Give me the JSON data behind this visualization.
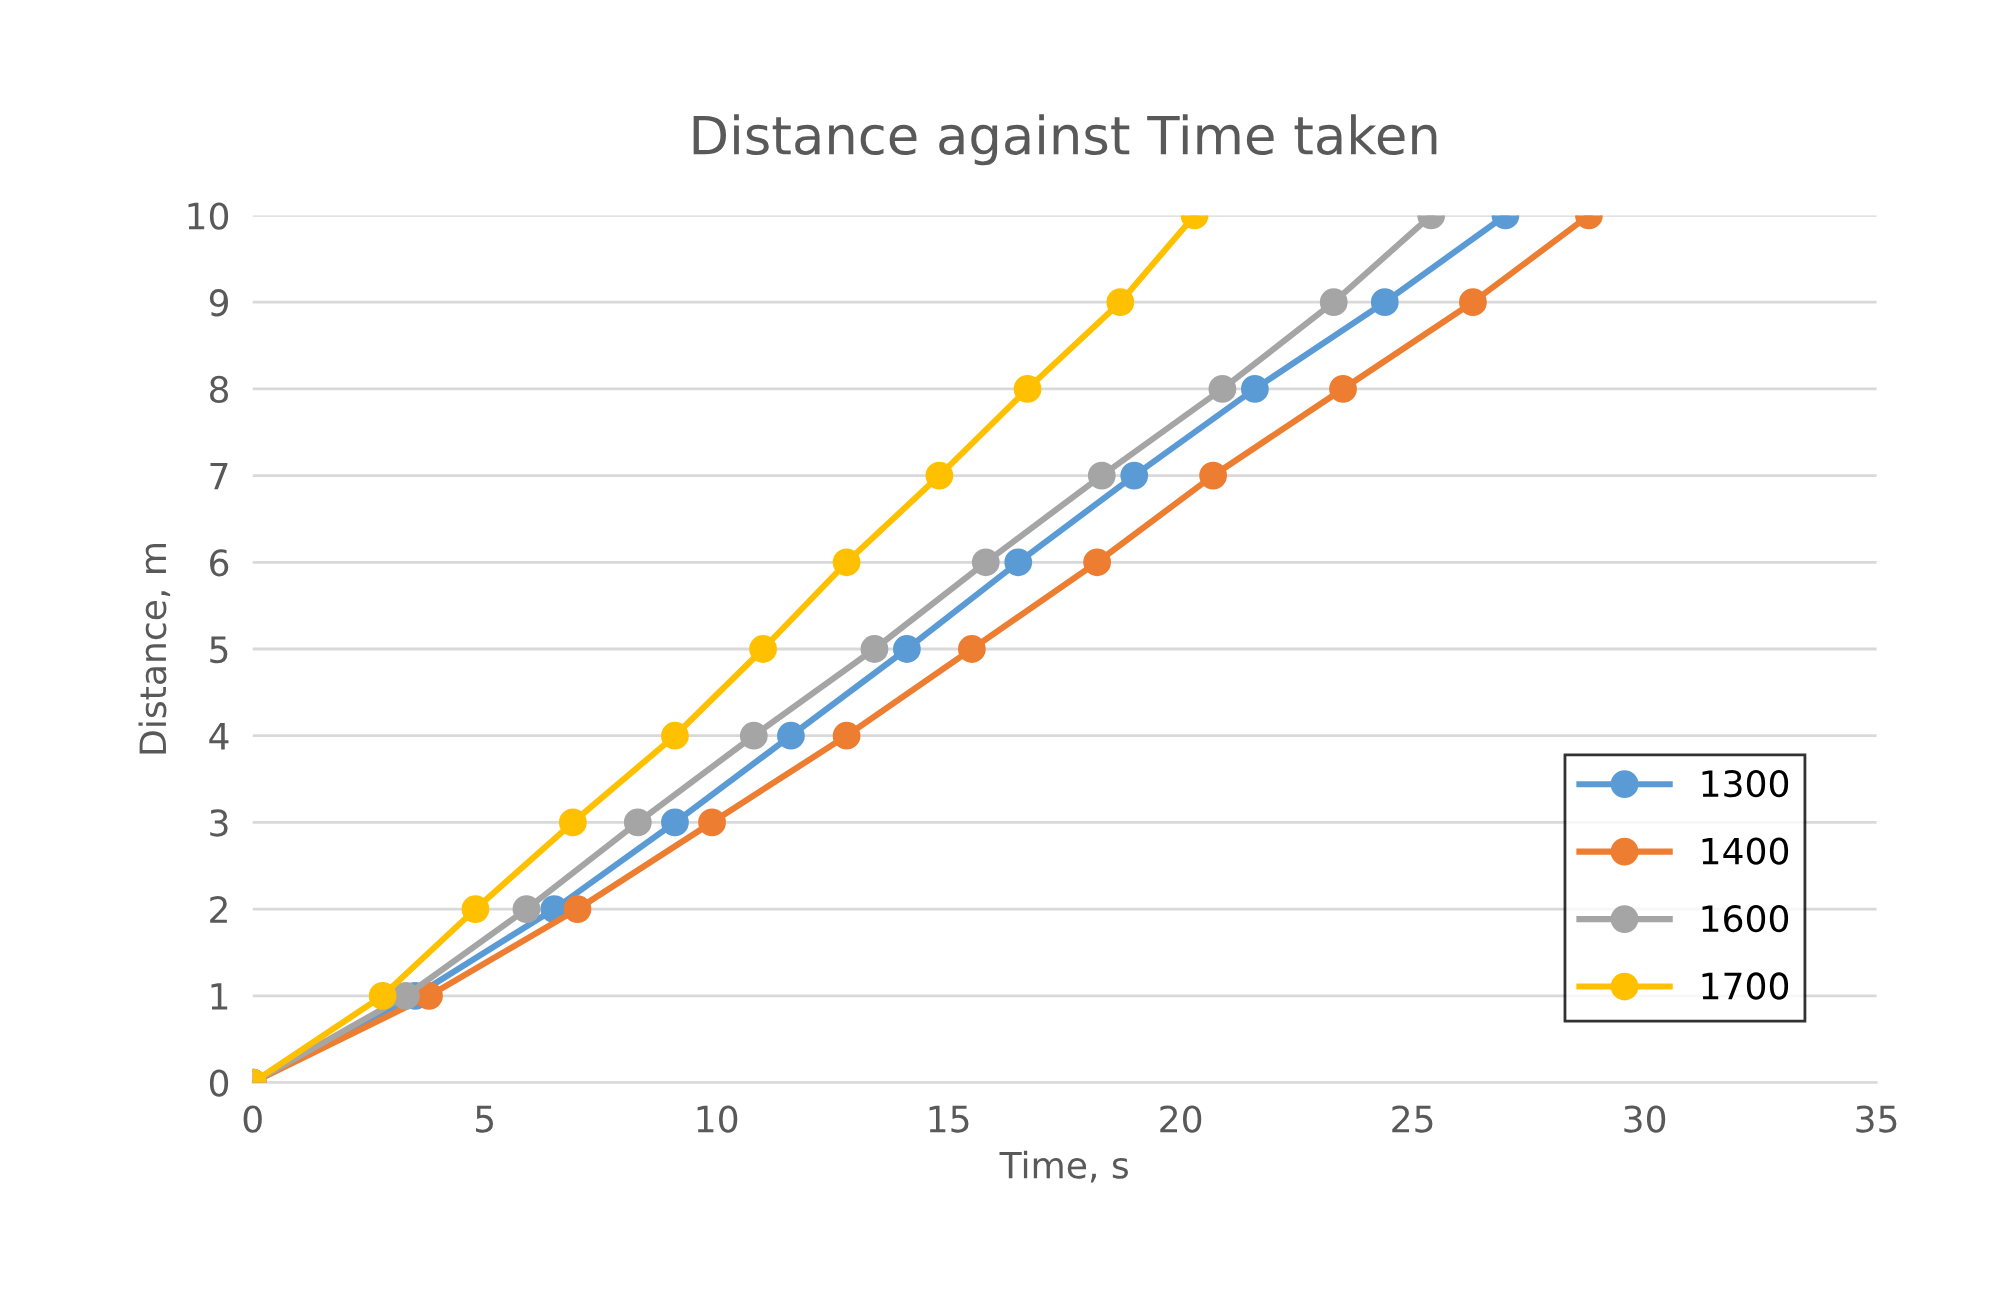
{
  "chart_data": {
    "type": "line",
    "title": "Distance against Time taken",
    "xlabel": "Time, s",
    "ylabel": "Distance, m",
    "xlim": [
      0,
      35
    ],
    "xticks": [
      0,
      5,
      10,
      15,
      20,
      25,
      30,
      35
    ],
    "ylim": [
      0,
      10
    ],
    "yticks": [
      0,
      1,
      2,
      3,
      4,
      5,
      6,
      7,
      8,
      9,
      10
    ],
    "grid": "y",
    "legend": "right",
    "marker": "circle",
    "line_style": "solid",
    "series": [
      {
        "name": "1300",
        "color": "#5b9bd5",
        "x": [
          0,
          3.5,
          6.5,
          9.1,
          11.6,
          14.1,
          16.5,
          19.0,
          21.6,
          24.4,
          27.0
        ],
        "values": [
          0,
          1,
          2,
          3,
          4,
          5,
          6,
          7,
          8,
          9,
          10
        ]
      },
      {
        "name": "1400",
        "color": "#ed7d31",
        "x": [
          0,
          3.8,
          7.0,
          9.9,
          12.8,
          15.5,
          18.2,
          20.7,
          23.5,
          26.3,
          28.8
        ],
        "values": [
          0,
          1,
          2,
          3,
          4,
          5,
          6,
          7,
          8,
          9,
          10
        ]
      },
      {
        "name": "1600",
        "color": "#a5a5a5",
        "x": [
          0,
          3.3,
          5.9,
          8.3,
          10.8,
          13.4,
          15.8,
          18.3,
          20.9,
          23.3,
          25.4
        ],
        "values": [
          0,
          1,
          2,
          3,
          4,
          5,
          6,
          7,
          8,
          9,
          10
        ]
      },
      {
        "name": "1700",
        "color": "#ffc000",
        "x": [
          0,
          2.8,
          4.8,
          6.9,
          9.1,
          11.0,
          12.8,
          14.8,
          16.7,
          18.7,
          20.3
        ],
        "values": [
          0,
          1,
          2,
          3,
          4,
          5,
          6,
          7,
          8,
          9,
          10
        ]
      }
    ]
  }
}
